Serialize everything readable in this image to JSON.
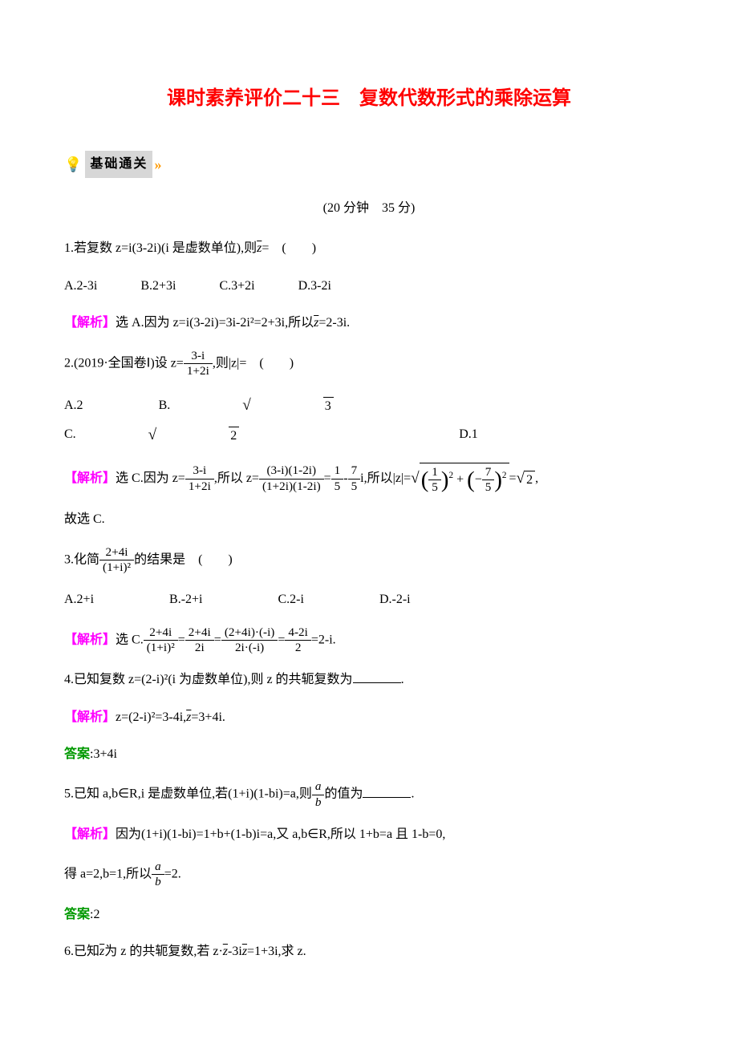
{
  "colors": {
    "title_red": "#ff0000",
    "analysis_magenta": "#ff00ff",
    "answer_green": "#009900",
    "chevron_orange": "#ff9900",
    "grey_box": "#d7d7d7",
    "text": "#000000",
    "background": "#ffffff"
  },
  "fonts": {
    "title_family": "SimHei",
    "title_size_pt": 24,
    "body_family": "SimSun",
    "body_size_pt": 16
  },
  "title": "课时素养评价二十三　复数代数形式的乘除运算",
  "section_label": "基础通关",
  "chevrons": "»",
  "timing": "(20 分钟　35 分)",
  "q1": {
    "text_a": "1.若复数 z=i(3-2i)(i 是虚数单位),则",
    "conj": "z",
    "text_b": "=　(　　)",
    "opts": {
      "A": "A.2-3i",
      "B": "B.2+3i",
      "C": "C.3+2i",
      "D": "D.3-2i"
    },
    "analysis_label": "【解析】",
    "analysis_a": "选 A.因为 z=i(3-2i)=3i-2i²=2+3i,所以",
    "analysis_conj": "z",
    "analysis_b": "=2-3i."
  },
  "q2": {
    "text_a": "2.(2019·全国卷Ⅰ)设 z=",
    "frac_num": "3-i",
    "frac_den": "1+2i",
    "text_b": ",则|z|=　(　　)",
    "opts": {
      "A": "A.2",
      "B_pre": "B.",
      "B_rad": "3",
      "C_pre": "C.",
      "C_rad": "2",
      "D": "D.1"
    },
    "analysis_label": "【解析】",
    "analysis_a": "选 C.因为 z=",
    "f1_num": "3-i",
    "f1_den": "1+2i",
    "analysis_b": ",所以 z=",
    "f2_num": "(3-i)(1-2i)",
    "f2_den": "(1+2i)(1-2i)",
    "eq1": "=",
    "f3_num": "1",
    "f3_den": "5",
    "minus": "-",
    "f4_num": "7",
    "f4_den": "5",
    "analysis_c": "i,所以|z|=",
    "sq1_num": "1",
    "sq1_den": "5",
    "plus": "+",
    "sq2_num": "7",
    "sq2_den": "5",
    "eq2": "=",
    "sqrt_result": "2",
    "comma": ",",
    "analysis_d": "故选 C."
  },
  "q3": {
    "text_a": "3.化简",
    "frac_num": "2+4i",
    "frac_den": "(1+i)²",
    "text_b": "的结果是　(　　)",
    "opts": {
      "A": "A.2+i",
      "B": "B.-2+i",
      "C": "C.2-i",
      "D": "D.-2-i"
    },
    "analysis_label": "【解析】",
    "analysis_a": "选 C.",
    "f1_num": "2+4i",
    "f1_den": "(1+i)²",
    "eq1": "=",
    "f2_num": "2+4i",
    "f2_den": "2i",
    "eq2": "=",
    "f3_num": "(2+4i)·(-i)",
    "f3_den": "2i·(-i)",
    "eq3": "=",
    "f4_num": "4-2i",
    "f4_den": "2",
    "analysis_b": "=2-i."
  },
  "q4": {
    "text": "4.已知复数 z=(2-i)²(i 为虚数单位),则 z 的共轭复数为",
    "period": ".",
    "analysis_label": "【解析】",
    "analysis_a": "z=(2-i)²=3-4i,",
    "analysis_conj": "z",
    "analysis_b": "=3+4i.",
    "answer_label": "答案",
    "answer_text": ":3+4i"
  },
  "q5": {
    "text_a": "5.已知 a,b∈R,i 是虚数单位,若(1+i)(1-bi)=a,则",
    "frac_num": "a",
    "frac_den": "b",
    "text_b": "的值为",
    "period": ".",
    "analysis_label": "【解析】",
    "analysis_a": "因为(1+i)(1-bi)=1+b+(1-b)i=a,又 a,b∈R,所以 1+b=a 且 1-b=0,",
    "analysis_b": "得 a=2,b=1,所以",
    "f_num": "a",
    "f_den": "b",
    "analysis_c": "=2.",
    "answer_label": "答案",
    "answer_text": ":2"
  },
  "q6": {
    "text_a": "6.已知",
    "conj1": "z",
    "text_b": "为 z 的共轭复数,若 z·",
    "conj2": "z",
    "text_c": "-3i",
    "conj3": "z",
    "text_d": "=1+3i,求 z."
  }
}
